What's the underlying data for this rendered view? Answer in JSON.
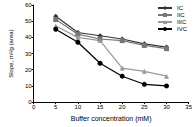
{
  "chart_data": {
    "type": "line",
    "x_label": "Buffer concentration (mM)",
    "y_label": "Slope, m²/g (area)",
    "x": [
      5,
      10,
      15,
      20,
      25,
      30
    ],
    "series": [
      {
        "name": "IC",
        "color": "#333333",
        "marker": "diamond",
        "values": [
          53,
          43,
          41,
          39,
          36,
          34
        ]
      },
      {
        "name": "IIC",
        "color": "#777777",
        "marker": "square",
        "values": [
          51,
          42,
          39,
          38,
          35,
          33
        ]
      },
      {
        "name": "IIIC",
        "color": "#999999",
        "marker": "triangle",
        "values": [
          47,
          40,
          38,
          21,
          19,
          16
        ]
      },
      {
        "name": "IVC",
        "color": "#000000",
        "marker": "circle",
        "values": [
          45,
          37,
          24,
          16,
          11,
          10
        ]
      }
    ],
    "xlim": [
      0,
      35
    ],
    "xticks": [
      0,
      5,
      10,
      15,
      20,
      25,
      30,
      35
    ],
    "ylim": [
      0,
      60
    ],
    "yticks": [
      0,
      10,
      20,
      30,
      40,
      50,
      60
    ],
    "grid": false,
    "legend": "upper right"
  }
}
